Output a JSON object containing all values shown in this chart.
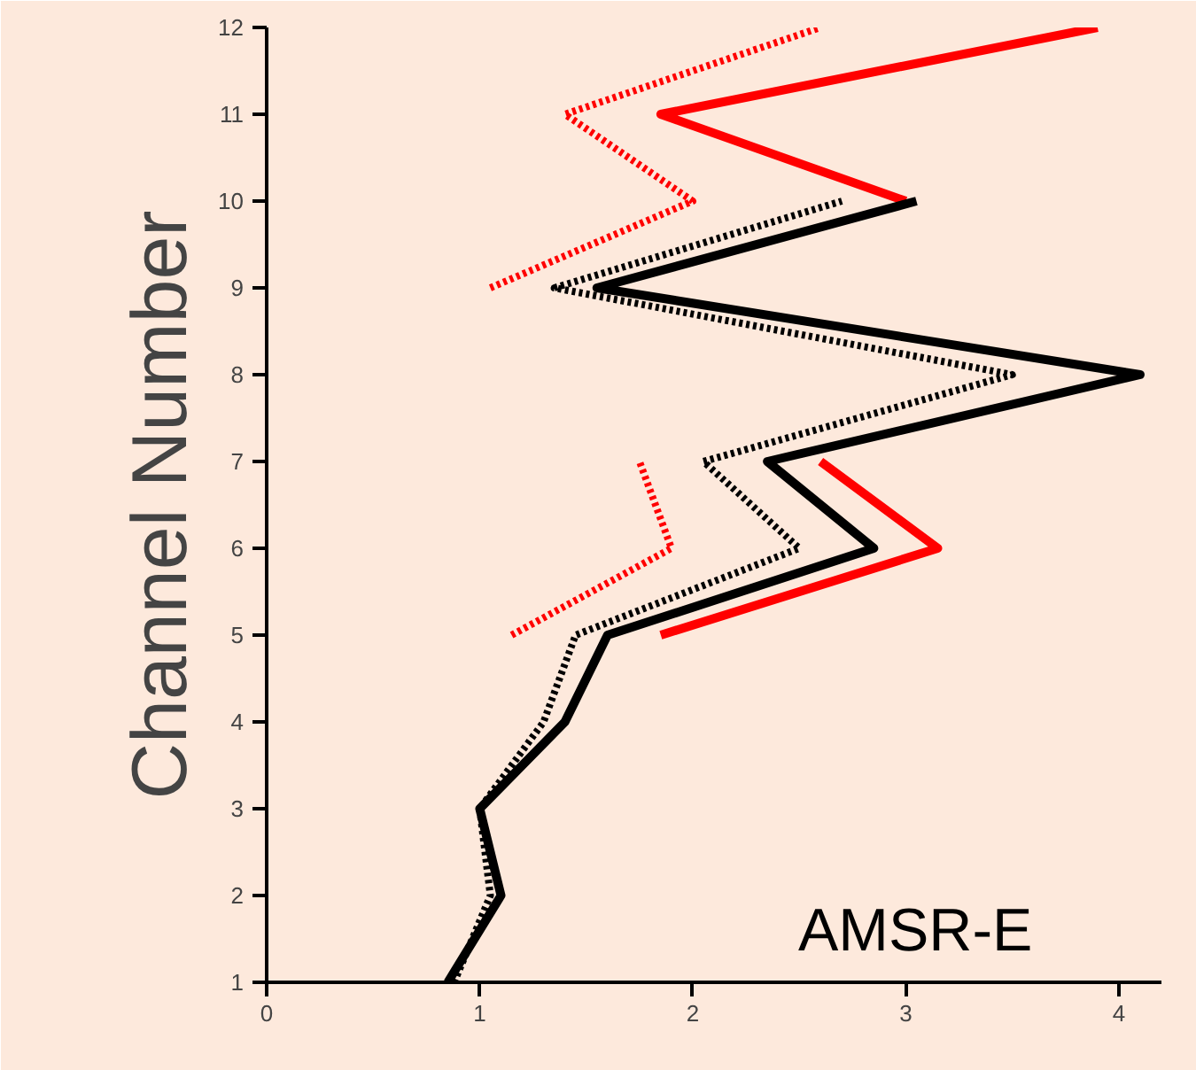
{
  "chart_data": {
    "type": "line",
    "ylabel": "Channel Number",
    "x": [
      1,
      2,
      3,
      4,
      5,
      6,
      7,
      8,
      9,
      10,
      11,
      12
    ],
    "orientation": "horizontal",
    "series": [
      {
        "color": "#ff0000",
        "line_style": "solid",
        "values": [
          null,
          null,
          null,
          null,
          1.85,
          3.15,
          2.6,
          null,
          null,
          3.0,
          1.85,
          3.9
        ]
      },
      {
        "color": "#ff0000",
        "line_style": "dotted",
        "values": [
          null,
          null,
          null,
          null,
          1.15,
          1.9,
          1.75,
          null,
          1.05,
          2.0,
          1.4,
          2.6
        ]
      },
      {
        "color": "#000000",
        "line_style": "dotted",
        "values": [
          0.88,
          1.05,
          1.0,
          1.3,
          1.45,
          2.5,
          2.05,
          3.5,
          1.35,
          2.7,
          null,
          null
        ]
      },
      {
        "color": "#000000",
        "line_style": "solid",
        "values": [
          0.85,
          1.1,
          1.0,
          1.4,
          1.6,
          2.85,
          2.35,
          4.1,
          1.55,
          3.05,
          null,
          null
        ]
      }
    ],
    "xlim": [
      0,
      4.2
    ],
    "xticks": [
      0,
      1,
      2,
      3,
      4
    ],
    "ylim": [
      1,
      12
    ],
    "yticks": [
      1,
      2,
      3,
      4,
      5,
      6,
      7,
      8,
      9,
      10,
      11,
      12
    ],
    "grid": false,
    "marker": "none",
    "annotations": [
      "AMSR-E"
    ]
  }
}
